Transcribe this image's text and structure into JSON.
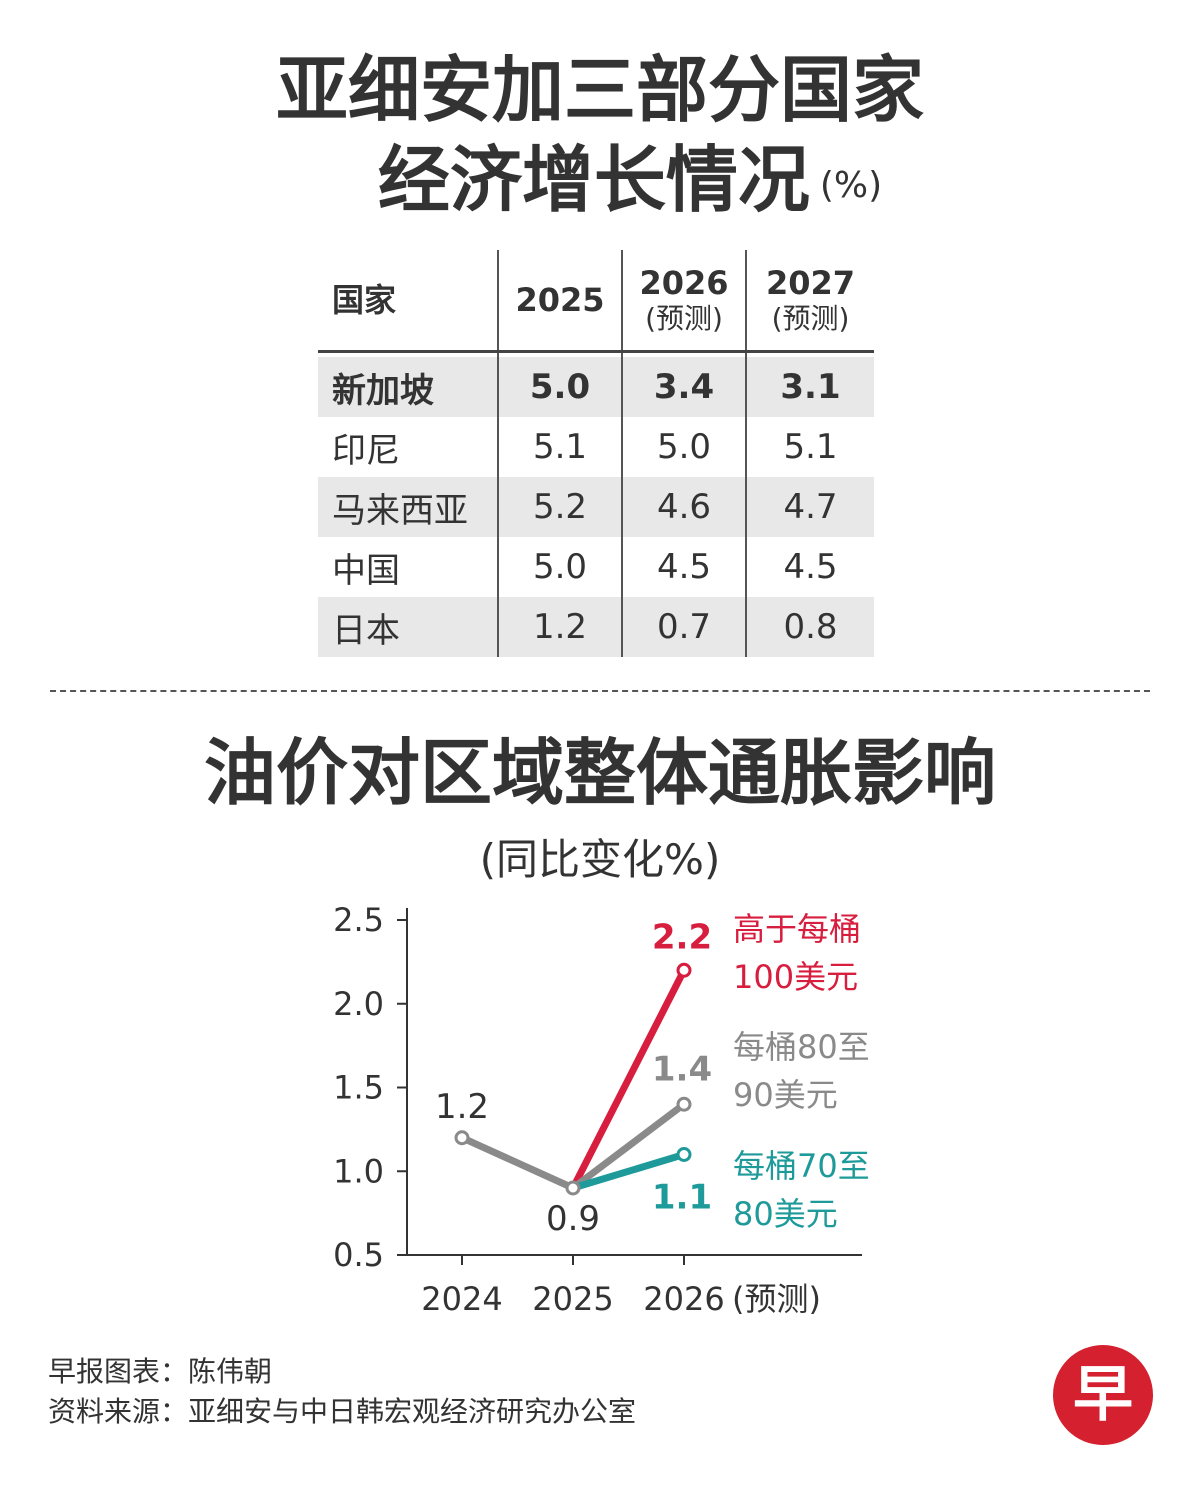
{
  "table_section": {
    "title_line1": "亚细安加三部分国家",
    "title_line2": "经济增长情况",
    "unit": "(%)",
    "headers": [
      {
        "label": "国家",
        "sub": ""
      },
      {
        "label": "2025",
        "sub": ""
      },
      {
        "label": "2026",
        "sub": "(预测)"
      },
      {
        "label": "2027",
        "sub": "(预测)"
      }
    ],
    "rows": [
      {
        "country": "新加坡",
        "v2025": "5.0",
        "v2026": "3.4",
        "v2027": "3.1"
      },
      {
        "country": "印尼",
        "v2025": "5.1",
        "v2026": "5.0",
        "v2027": "5.1"
      },
      {
        "country": "马来西亚",
        "v2025": "5.2",
        "v2026": "4.6",
        "v2027": "4.7"
      },
      {
        "country": "中国",
        "v2025": "5.0",
        "v2026": "4.5",
        "v2027": "4.5"
      },
      {
        "country": "日本",
        "v2025": "1.2",
        "v2026": "0.7",
        "v2027": "0.8"
      }
    ]
  },
  "chart_section": {
    "title": "油价对区域整体通胀影响",
    "subtitle": "(同比变化%)"
  },
  "chart_data": {
    "type": "line",
    "title": "油价对区域整体通胀影响",
    "ylabel": "同比变化%",
    "ylim": [
      0.5,
      2.5
    ],
    "yticks": [
      "2.5",
      "2.0",
      "1.5",
      "1.0",
      "0.5"
    ],
    "categories": [
      "2024",
      "2025",
      "2026"
    ],
    "forecast_label": "(预测)",
    "baseline": {
      "values": [
        1.2,
        0.9
      ],
      "labels": [
        "1.2",
        "0.9"
      ],
      "color": "#8a8a8a"
    },
    "series": [
      {
        "name_line1": "高于每桶",
        "name_line2": "100美元",
        "values": [
          null,
          0.9,
          2.2
        ],
        "end_label": "2.2",
        "color": "#d81e3f"
      },
      {
        "name_line1": "每桶80至",
        "name_line2": "90美元",
        "values": [
          null,
          0.9,
          1.4
        ],
        "end_label": "1.4",
        "color": "#8a8a8a"
      },
      {
        "name_line1": "每桶70至",
        "name_line2": "80美元",
        "values": [
          null,
          0.9,
          1.1
        ],
        "end_label": "1.1",
        "color": "#1f9a9a"
      }
    ]
  },
  "credits": {
    "line1": "早报图表：陈伟朝",
    "line2": "资料来源：亚细安与中日韩宏观经济研究办公室"
  },
  "logo": {
    "char": "早",
    "color": "#d4202f"
  }
}
